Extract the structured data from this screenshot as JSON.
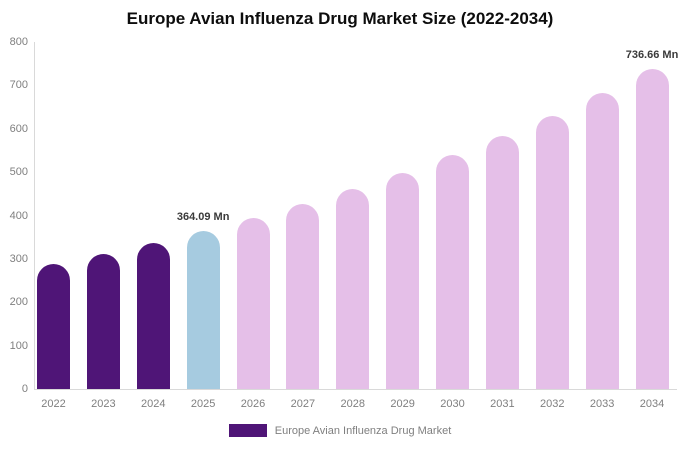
{
  "title": "Europe Avian Influenza Drug Market Size (2022-2034)",
  "legend": {
    "label": "Europe Avian Influenza Drug Market",
    "swatch_color": "#4f1577"
  },
  "colors": {
    "historical": "#4f1577",
    "base_year": "#a6cbe0",
    "forecast": "#e5bfe8",
    "axis_line": "#d9d9d9",
    "axis_text": "#7f7f7f",
    "annotation_text": "#3a3a3a"
  },
  "chart_data": {
    "type": "bar",
    "title": "Europe Avian Influenza Drug Market Size (2022-2034)",
    "xlabel": "",
    "ylabel": "",
    "unit": "Mn",
    "ylim": [
      0,
      800
    ],
    "y_ticks": [
      0,
      100,
      200,
      300,
      400,
      500,
      600,
      700,
      800
    ],
    "grid": false,
    "legend_position": "bottom",
    "categories": [
      "2022",
      "2023",
      "2024",
      "2025",
      "2026",
      "2027",
      "2028",
      "2029",
      "2030",
      "2031",
      "2032",
      "2033",
      "2034"
    ],
    "values": [
      288,
      311,
      336,
      364.09,
      394,
      426,
      461,
      498,
      539,
      583,
      630,
      682,
      736.66
    ],
    "bar_colors": [
      "#4f1577",
      "#4f1577",
      "#4f1577",
      "#a6cbe0",
      "#e5bfe8",
      "#e5bfe8",
      "#e5bfe8",
      "#e5bfe8",
      "#e5bfe8",
      "#e5bfe8",
      "#e5bfe8",
      "#e5bfe8",
      "#e5bfe8"
    ],
    "annotations": [
      {
        "category": "2025",
        "text": "364.09 Mn"
      },
      {
        "category": "2034",
        "text": "736.66 Mn"
      }
    ]
  }
}
